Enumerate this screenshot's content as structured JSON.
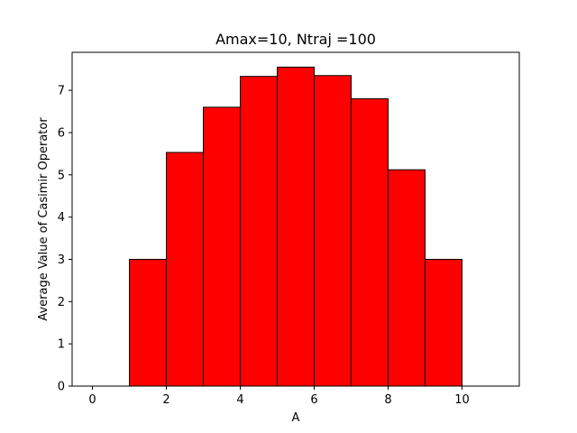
{
  "chart_data": {
    "type": "bar",
    "title": "Amax=10, Ntraj =100",
    "xlabel": "A",
    "ylabel": "Average Value of Casimir Operator",
    "bars": [
      {
        "x": 0,
        "value": 0.0
      },
      {
        "x": 1,
        "value": 3.0
      },
      {
        "x": 2,
        "value": 5.53
      },
      {
        "x": 3,
        "value": 6.6
      },
      {
        "x": 4,
        "value": 7.33
      },
      {
        "x": 5,
        "value": 7.55
      },
      {
        "x": 6,
        "value": 7.35
      },
      {
        "x": 7,
        "value": 6.8
      },
      {
        "x": 8,
        "value": 5.12
      },
      {
        "x": 9,
        "value": 3.0
      },
      {
        "x": 10,
        "value": 0.0
      }
    ],
    "bar_width": 1,
    "xlim": [
      -0.55,
      11.55
    ],
    "ylim": [
      0,
      7.9
    ],
    "xticks": [
      0,
      2,
      4,
      6,
      8,
      10
    ],
    "yticks": [
      0,
      1,
      2,
      3,
      4,
      5,
      6,
      7
    ],
    "bar_color": "#ff0000",
    "edge_color": "#000000",
    "grid": false
  }
}
